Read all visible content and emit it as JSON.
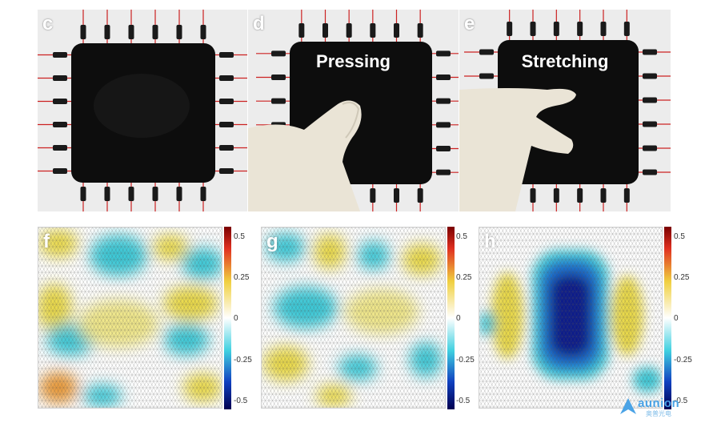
{
  "panels": {
    "c": {
      "letter": "c"
    },
    "d": {
      "letter": "d",
      "caption": "Pressing"
    },
    "e": {
      "letter": "e",
      "caption": "Stretching"
    },
    "f": {
      "letter": "f"
    },
    "g": {
      "letter": "g"
    },
    "h": {
      "letter": "h"
    }
  },
  "colorbar": {
    "ticks": [
      "0.5",
      "0.25",
      "0",
      "-0.25",
      "-0.5"
    ],
    "ticks_g": [
      "0.5",
      "0.25",
      "0",
      "-0.25",
      "-0.5"
    ],
    "ticks_h": [
      "0.5",
      "0.25",
      "0",
      "-0.25",
      "-0.5"
    ]
  },
  "colors": {
    "sheet": "#0d0d0d",
    "background": "#ececec",
    "wire": "#cc2222",
    "connector": "#1a1a1a",
    "glove": "#eae4d6",
    "positive": "#e8d84a",
    "negative": "#3ec8d6",
    "strong_negative": "#0b1a8a"
  },
  "logo": {
    "name": "aunion",
    "subtitle": "奥普光电"
  }
}
